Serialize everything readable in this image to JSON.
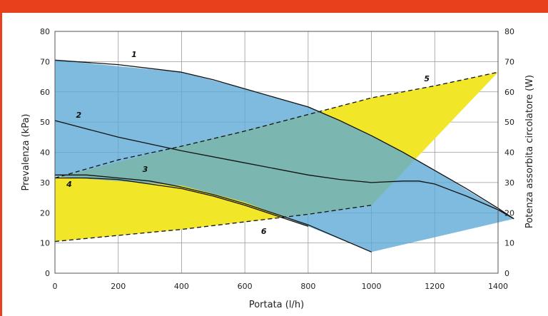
{
  "chart_data": {
    "type": "area",
    "xlabel": "Portata (l/h)",
    "ylabel_left": "Prevalenza (kPa)",
    "ylabel_right": "Potenza assorbita circolatore (W)",
    "xlim": [
      0,
      1400
    ],
    "ylim_left": [
      0,
      80
    ],
    "ylim_right": [
      0,
      80
    ],
    "x_ticks": [
      "0",
      "200",
      "400",
      "600",
      "800",
      "1000",
      "1200",
      "1400"
    ],
    "y_ticks_left": [
      "0",
      "10",
      "20",
      "30",
      "40",
      "50",
      "60",
      "70",
      "80"
    ],
    "y_ticks_right": [
      "0",
      "10",
      "20",
      "30",
      "40",
      "50",
      "60",
      "70",
      "80"
    ],
    "grid": true,
    "colors": {
      "frame": "#e8401c",
      "head_area": "#5aa8d6",
      "power_area": "#f2e629",
      "line": "#111111"
    },
    "head_area": {
      "x": [
        0,
        400,
        600,
        800,
        1000,
        1200,
        1450,
        1000,
        800,
        600,
        400,
        0
      ],
      "y": [
        70.5,
        66.5,
        61,
        55,
        45.5,
        34,
        18,
        7,
        15.5,
        23.5,
        29,
        32
      ]
    },
    "power_area": {
      "x": [
        0,
        400,
        800,
        1000,
        1200,
        1400,
        1000,
        800,
        600,
        400,
        0
      ],
      "y": [
        31.5,
        42,
        52.5,
        58,
        62,
        66.5,
        22.5,
        19.5,
        17,
        14.5,
        10.5
      ]
    },
    "series": [
      {
        "name": "1",
        "axis": "left",
        "style": "solid",
        "x": [
          0,
          200,
          400,
          500,
          600,
          700,
          800,
          900,
          1000,
          1100,
          1200,
          1300,
          1400,
          1450
        ],
        "y": [
          70.5,
          69,
          66.5,
          64,
          61,
          58,
          55,
          50.5,
          45.5,
          40,
          34,
          28,
          21.5,
          18
        ]
      },
      {
        "name": "2",
        "axis": "left",
        "style": "solid",
        "x": [
          0,
          200,
          400,
          600,
          800,
          900,
          1000,
          1100,
          1150,
          1200,
          1300,
          1400,
          1450
        ],
        "y": [
          50.5,
          45,
          40.5,
          36.5,
          32.5,
          31,
          30,
          30.5,
          30.5,
          29.5,
          25.5,
          21,
          18
        ]
      },
      {
        "name": "3",
        "axis": "left",
        "style": "solid",
        "x": [
          0,
          100,
          200,
          300,
          400,
          500,
          600,
          700,
          800,
          900,
          1000
        ],
        "y": [
          32.5,
          32.5,
          31.5,
          30.5,
          28.5,
          26,
          23,
          19.5,
          16,
          11.5,
          7
        ]
      },
      {
        "name": "4",
        "axis": "left",
        "style": "solid",
        "x": [
          0,
          100,
          200,
          300,
          400,
          500,
          600,
          700,
          800
        ],
        "y": [
          31.5,
          31.5,
          31,
          29.5,
          28,
          25.5,
          22.5,
          19,
          15.5
        ]
      },
      {
        "name": "5",
        "axis": "right",
        "style": "dashed",
        "x": [
          0,
          200,
          400,
          600,
          800,
          1000,
          1200,
          1400
        ],
        "y": [
          31.5,
          37.5,
          42,
          47,
          52.5,
          58,
          62,
          66.5
        ]
      },
      {
        "name": "6",
        "axis": "right",
        "style": "dashed",
        "x": [
          0,
          200,
          400,
          600,
          800,
          900,
          1000
        ],
        "y": [
          10.5,
          12.5,
          14.5,
          17,
          19.5,
          21,
          22.5
        ]
      }
    ],
    "curve_labels": [
      {
        "text": "1",
        "x": 250,
        "y": 71.5
      },
      {
        "text": "2",
        "x": 75,
        "y": 51.5
      },
      {
        "text": "3",
        "x": 285,
        "y": 33.5
      },
      {
        "text": "4",
        "x": 45,
        "y": 28.5
      },
      {
        "text": "5",
        "x": 1175,
        "y": 63.5
      },
      {
        "text": "6",
        "x": 660,
        "y": 13
      }
    ]
  }
}
